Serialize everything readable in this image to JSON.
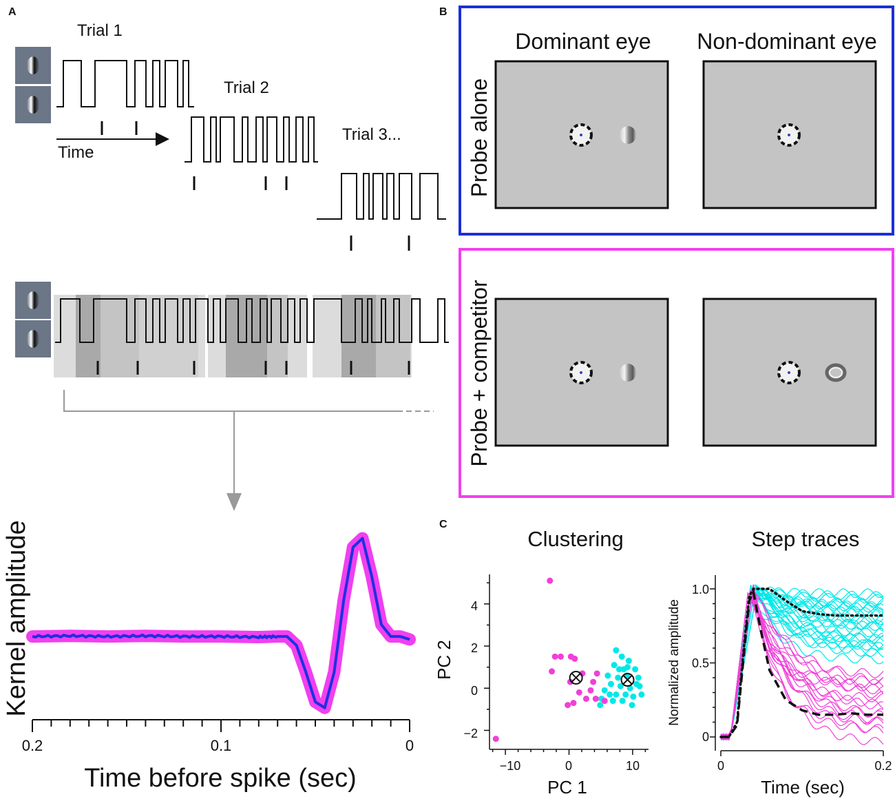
{
  "panels": {
    "a": "A",
    "b": "B",
    "c": "C"
  },
  "panel_a": {
    "trials": [
      "Trial 1",
      "Trial 2",
      "Trial 3..."
    ],
    "time_label": "Time",
    "kernel": {
      "ylabel": "Kernel amplitude",
      "xlabel": "Time before spike (sec)",
      "xticks": [
        "0.2",
        "0.1",
        "0"
      ]
    }
  },
  "panel_b": {
    "col_titles": [
      "Dominant eye",
      "Non-dominant eye"
    ],
    "row_labels": [
      "Probe alone",
      "Probe + competitor"
    ],
    "frame_colors": {
      "probe_alone": "#1a2fd6",
      "probe_competitor": "#f040f0"
    }
  },
  "panel_c": {
    "clustering": {
      "title": "Clustering",
      "xlabel": "PC 1",
      "ylabel": "PC 2",
      "xticks": [
        "−10",
        "0",
        "10"
      ],
      "yticks": [
        "−2",
        "0",
        "2",
        "4"
      ]
    },
    "step_traces": {
      "title": "Step traces",
      "xlabel": "Time (sec)",
      "ylabel": "Normalized amplitude",
      "xticks": [
        "0",
        "0.2"
      ],
      "yticks": [
        "0",
        "0.5",
        "1.0"
      ]
    },
    "colors": {
      "cluster_a": "#f040d8",
      "cluster_b": "#00e8e8"
    }
  },
  "chart_data": [
    {
      "type": "line",
      "title": "",
      "xlabel": "Time before spike (sec)",
      "ylabel": "Kernel amplitude",
      "xlim": [
        0.2,
        0
      ],
      "ylim": [
        -1.4,
        1.9
      ],
      "x": [
        0.2,
        0.18,
        0.16,
        0.14,
        0.12,
        0.1,
        0.08,
        0.07,
        0.065,
        0.06,
        0.055,
        0.05,
        0.045,
        0.04,
        0.035,
        0.03,
        0.025,
        0.02,
        0.015,
        0.01,
        0.005,
        0
      ],
      "series": [
        {
          "name": "kernel",
          "values": [
            0,
            0.01,
            0,
            0.01,
            0,
            0,
            -0.01,
            0,
            0,
            -0.15,
            -0.6,
            -1.1,
            -1.2,
            -0.6,
            0.6,
            1.5,
            1.65,
            1.0,
            0.2,
            0,
            0,
            -0.05
          ]
        }
      ]
    },
    {
      "type": "scatter",
      "title": "Clustering",
      "xlabel": "PC 1",
      "ylabel": "PC 2",
      "xlim": [
        -12.5,
        12.5
      ],
      "ylim": [
        -2.9,
        5.4
      ],
      "series": [
        {
          "name": "cluster_a",
          "points": [
            [
              -11.5,
              -2.4
            ],
            [
              -3,
              5.1
            ],
            [
              -2.7,
              0.8
            ],
            [
              -2.2,
              1.5
            ],
            [
              -1.3,
              1.5
            ],
            [
              0.3,
              1.5
            ],
            [
              0.9,
              1.4
            ],
            [
              0.2,
              0.3
            ],
            [
              2.1,
              0.7
            ],
            [
              3.8,
              0.3
            ],
            [
              3.4,
              -0.1
            ],
            [
              4.2,
              -0.5
            ],
            [
              2.7,
              -0.5
            ],
            [
              0.7,
              -0.7
            ],
            [
              -0.2,
              -0.8
            ],
            [
              5.6,
              -0.6
            ],
            [
              4.4,
              0.7
            ],
            [
              1.6,
              -0.2
            ]
          ]
        },
        {
          "name": "cluster_b",
          "points": [
            [
              7.4,
              1.8
            ],
            [
              8.3,
              1.5
            ],
            [
              9.4,
              1.3
            ],
            [
              7.1,
              1.1
            ],
            [
              8.6,
              0.9
            ],
            [
              10.4,
              0.9
            ],
            [
              6.1,
              0.6
            ],
            [
              7.7,
              0.5
            ],
            [
              9.1,
              0.6
            ],
            [
              10.9,
              0.5
            ],
            [
              6.6,
              0.2
            ],
            [
              8.1,
              0.1
            ],
            [
              9.6,
              0.0
            ],
            [
              11.1,
              0.1
            ],
            [
              5.6,
              -0.1
            ],
            [
              7.4,
              -0.3
            ],
            [
              8.9,
              -0.3
            ],
            [
              10.1,
              -0.4
            ],
            [
              6.9,
              -0.6
            ],
            [
              8.4,
              -0.6
            ],
            [
              9.9,
              -0.8
            ],
            [
              5.1,
              -0.5
            ],
            [
              11.4,
              -0.3
            ],
            [
              7.9,
              0.9
            ],
            [
              6.4,
              -0.3
            ],
            [
              10.6,
              0.2
            ],
            [
              9.2,
              1.0
            ],
            [
              4.9,
              -0.8
            ]
          ]
        },
        {
          "name": "centroids",
          "points": [
            [
              1.1,
              0.5
            ],
            [
              9.2,
              0.4
            ]
          ]
        }
      ]
    },
    {
      "type": "line",
      "title": "Step traces",
      "xlabel": "Time (sec)",
      "ylabel": "Normalized amplitude",
      "xlim": [
        0,
        0.2
      ],
      "ylim": [
        -0.1,
        1.05
      ],
      "series": [
        {
          "name": "mean_cluster_b",
          "style": "dotted",
          "x": [
            0,
            0.01,
            0.02,
            0.03,
            0.035,
            0.04,
            0.06,
            0.08,
            0.1,
            0.12,
            0.14,
            0.16,
            0.18,
            0.2
          ],
          "values": [
            0,
            0,
            0.1,
            0.7,
            0.95,
            1.0,
            1.0,
            0.92,
            0.85,
            0.83,
            0.82,
            0.82,
            0.82,
            0.82
          ]
        },
        {
          "name": "mean_cluster_a",
          "style": "dashed",
          "x": [
            0,
            0.01,
            0.02,
            0.03,
            0.035,
            0.04,
            0.05,
            0.06,
            0.08,
            0.1,
            0.12,
            0.14,
            0.16,
            0.18,
            0.2
          ],
          "values": [
            0,
            0,
            0.08,
            0.65,
            0.92,
            0.98,
            0.7,
            0.45,
            0.25,
            0.18,
            0.15,
            0.15,
            0.16,
            0.15,
            0.15
          ]
        }
      ]
    }
  ]
}
